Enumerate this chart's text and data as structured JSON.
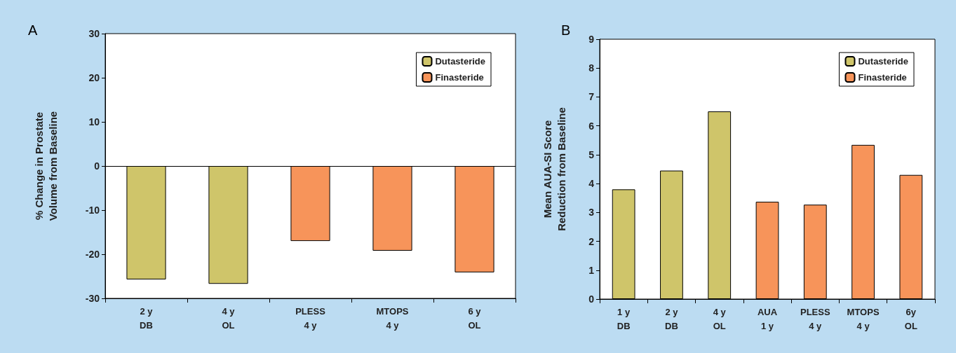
{
  "chart_data": [
    {
      "type": "bar",
      "title": "A",
      "ylabel": "% Change in Prostate\nVolume from Baseline",
      "categories": [
        "2 y\nDB",
        "4 y\nOL",
        "PLESS\n4 y",
        "MTOPS\n4 y",
        "6 y\nOL"
      ],
      "series": [
        {
          "name": "Dutasteride",
          "color": "#cfc56a",
          "values": [
            -25.7,
            -26.7,
            null,
            null,
            null
          ]
        },
        {
          "name": "Finasteride",
          "color": "#f7945a",
          "values": [
            null,
            null,
            -17,
            -19.2,
            -24.1
          ]
        }
      ],
      "ylim": [
        -30,
        30
      ],
      "yticks": [
        -30,
        -20,
        -10,
        0,
        10,
        20,
        30
      ],
      "ref_lines": [
        {
          "axis": "y",
          "value": 0,
          "color": "#000000"
        }
      ],
      "grid": false,
      "legend": "top right"
    },
    {
      "type": "bar",
      "title": "B",
      "ylabel": "Mean AUA-SI Score\nReduction from Baseline",
      "categories": [
        "1 y\nDB",
        "2 y\nDB",
        "4 y\nOL",
        "AUA\n1 y",
        "PLESS\n4 y",
        "MTOPS\n4 y",
        "6y\nOL"
      ],
      "series": [
        {
          "name": "Dutasteride",
          "color": "#cfc56a",
          "values": [
            3.8,
            4.45,
            6.5,
            null,
            null,
            null,
            null
          ]
        },
        {
          "name": "Finasteride",
          "color": "#f7945a",
          "values": [
            null,
            null,
            null,
            3.37,
            3.27,
            5.34,
            4.3
          ]
        }
      ],
      "ylim": [
        0,
        9
      ],
      "yticks": [
        0,
        1,
        2,
        3,
        4,
        5,
        6,
        7,
        8,
        9
      ],
      "grid": false,
      "legend": "top right"
    }
  ]
}
